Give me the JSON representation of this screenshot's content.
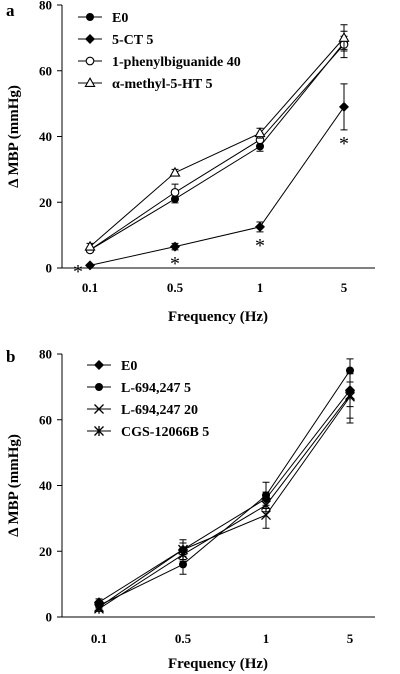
{
  "chart_data": [
    {
      "panel": "a",
      "type": "line",
      "xlabel": "Frequency (Hz)",
      "ylabel": "Δ MBP (mmHg)",
      "categories": [
        "0.1",
        "0.5",
        "1",
        "5"
      ],
      "ylim": [
        0,
        80
      ],
      "yticks": [
        "0",
        "20",
        "40",
        "60",
        "80"
      ],
      "grid": false,
      "legend_position": "top-left",
      "series": [
        {
          "name": "E0",
          "marker": "filled-circle",
          "values": [
            5.5,
            21,
            37,
            68.5
          ],
          "errors": [
            0.8,
            1.2,
            1.5,
            2
          ]
        },
        {
          "name": "5-CT  5",
          "marker": "filled-diamond",
          "values": [
            0.8,
            6.5,
            12.5,
            49
          ],
          "errors": [
            0.3,
            1,
            1.5,
            7
          ]
        },
        {
          "name": "1-phenylbiguanide 40",
          "marker": "open-circle",
          "values": [
            5.5,
            23,
            39,
            68
          ],
          "errors": [
            0.8,
            2.5,
            2,
            4
          ]
        },
        {
          "name": "α-methyl-5-HT 5",
          "marker": "open-triangle",
          "values": [
            6.5,
            29,
            41,
            70
          ],
          "errors": [
            1,
            1,
            1.5,
            4
          ]
        }
      ],
      "annotations": [
        {
          "text": "*",
          "x": "0.1"
        },
        {
          "text": "*",
          "x": "0.5"
        },
        {
          "text": "*",
          "x": "1"
        },
        {
          "text": "*",
          "x": "5"
        }
      ]
    },
    {
      "panel": "b",
      "type": "line",
      "xlabel": "Frequency (Hz)",
      "ylabel": "Δ MBP (mmHg)",
      "categories": [
        "0.1",
        "0.5",
        "1",
        "5"
      ],
      "ylim": [
        0,
        80
      ],
      "yticks": [
        "0",
        "20",
        "40",
        "60",
        "80"
      ],
      "grid": false,
      "legend_position": "top-left",
      "series": [
        {
          "name": "E0",
          "marker": "filled-diamond",
          "values": [
            4.5,
            20.5,
            36,
            69
          ],
          "errors": [
            1,
            3,
            2,
            5
          ]
        },
        {
          "name": "L-694,247  5",
          "marker": "filled-circle",
          "values": [
            3.5,
            16,
            37,
            75
          ],
          "errors": [
            0.8,
            3,
            4,
            3.5
          ]
        },
        {
          "name": "L-694,247 20",
          "marker": "x-mark",
          "values": [
            3,
            20.5,
            31,
            67
          ],
          "errors": [
            0.8,
            2,
            4,
            8
          ]
        },
        {
          "name": "CGS-12066B  5",
          "marker": "asterisk",
          "values": [
            2.5,
            19,
            34,
            67.5
          ],
          "errors": [
            0.8,
            2,
            2,
            7
          ]
        }
      ]
    }
  ]
}
